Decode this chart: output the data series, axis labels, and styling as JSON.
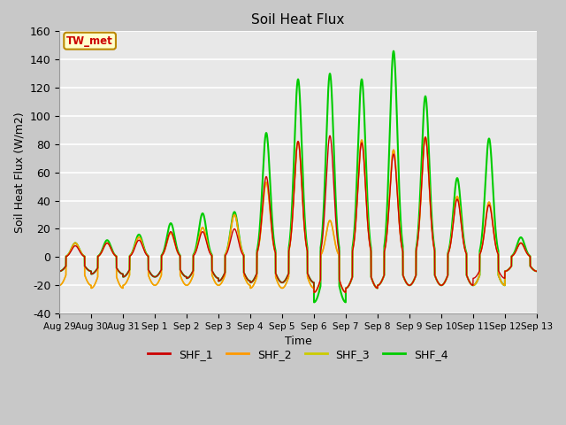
{
  "title": "Soil Heat Flux",
  "ylabel": "Soil Heat Flux (W/m2)",
  "xlabel": "Time",
  "ylim": [
    -40,
    160
  ],
  "yticks": [
    -40,
    -20,
    0,
    20,
    40,
    60,
    80,
    100,
    120,
    140,
    160
  ],
  "fig_bg": "#c8c8c8",
  "plot_bg": "#e8e8e8",
  "series_colors": [
    "#cc0000",
    "#ff9900",
    "#cccc00",
    "#00cc00"
  ],
  "series_labels": [
    "SHF_1",
    "SHF_2",
    "SHF_3",
    "SHF_4"
  ],
  "annotation_text": "TW_met",
  "annotation_bg": "#ffffcc",
  "annotation_fg": "#cc0000",
  "annotation_edge": "#bb8800",
  "n_days": 15,
  "pos_amps": [
    [
      8,
      10,
      12,
      18,
      18,
      20,
      57,
      82,
      86,
      81,
      73,
      85,
      41,
      37,
      10
    ],
    [
      10,
      10,
      14,
      17,
      21,
      30,
      53,
      82,
      26,
      83,
      76,
      85,
      43,
      39,
      10
    ],
    [
      10,
      10,
      14,
      17,
      21,
      30,
      53,
      82,
      26,
      83,
      76,
      85,
      43,
      39,
      10
    ],
    [
      10,
      12,
      16,
      24,
      31,
      32,
      88,
      126,
      130,
      126,
      146,
      114,
      56,
      84,
      14
    ]
  ],
  "neg_amps": [
    [
      10,
      12,
      14,
      14,
      15,
      17,
      18,
      18,
      25,
      22,
      20,
      20,
      20,
      15,
      10
    ],
    [
      20,
      22,
      20,
      20,
      20,
      20,
      22,
      22,
      25,
      22,
      20,
      20,
      20,
      20,
      10
    ],
    [
      20,
      22,
      20,
      20,
      20,
      20,
      22,
      22,
      25,
      22,
      20,
      20,
      20,
      20,
      10
    ],
    [
      10,
      12,
      14,
      14,
      15,
      17,
      18,
      18,
      32,
      22,
      20,
      20,
      20,
      20,
      10
    ]
  ],
  "xtick_labels": [
    "Aug 29",
    "Aug 30",
    "Aug 31",
    "Sep 1",
    "Sep 2",
    "Sep 3",
    "Sep 4",
    "Sep 5",
    "Sep 6",
    "Sep 7",
    "Sep 8",
    "Sep 9",
    "Sep 10",
    "Sep 11",
    "Sep 12",
    "Sep 13"
  ]
}
